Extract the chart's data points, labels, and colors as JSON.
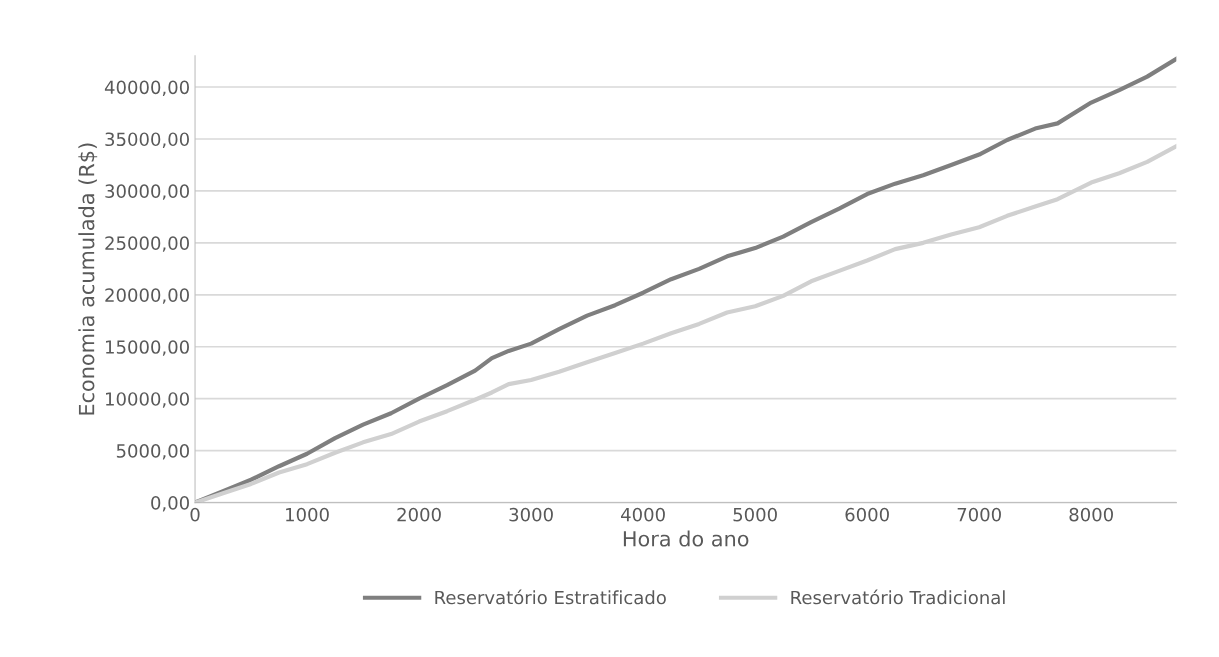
{
  "chart_data": {
    "type": "line",
    "xlabel": "Hora do ano",
    "ylabel": "Economia acumulada (R$)",
    "x": [
      0,
      250,
      500,
      750,
      1000,
      1250,
      1500,
      1750,
      2000,
      2250,
      2500,
      2650,
      2800,
      3000,
      3250,
      3500,
      3750,
      4000,
      4250,
      4500,
      4750,
      5000,
      5250,
      5500,
      5750,
      6000,
      6250,
      6500,
      6750,
      7000,
      7250,
      7500,
      7700,
      8000,
      8250,
      8500,
      8760
    ],
    "series": [
      {
        "name": "Reservatório Estratificado",
        "color": "#7f7f7f",
        "values": [
          0,
          1100,
          2200,
          3500,
          4700,
          6200,
          7500,
          8600,
          10000,
          11300,
          12700,
          13900,
          14600,
          15300,
          16700,
          18000,
          19000,
          20200,
          21500,
          22500,
          23700,
          24500,
          25600,
          27000,
          28300,
          29700,
          30700,
          31500,
          32500,
          33500,
          34900,
          36000,
          36500,
          38500,
          39700,
          41000,
          42700
        ]
      },
      {
        "name": "Reservatório Tradicional",
        "color": "#d0d0d0",
        "values": [
          0,
          900,
          1800,
          2900,
          3700,
          4800,
          5800,
          6600,
          7800,
          8800,
          9900,
          10600,
          11400,
          11800,
          12600,
          13500,
          14400,
          15300,
          16300,
          17200,
          18300,
          18900,
          19900,
          21300,
          22300,
          23300,
          24400,
          25000,
          25800,
          26500,
          27600,
          28500,
          29200,
          30800,
          31700,
          32800,
          34300
        ]
      }
    ],
    "xlim": [
      0,
      8760
    ],
    "xticks": [
      0,
      1000,
      2000,
      3000,
      4000,
      5000,
      6000,
      7000,
      8000
    ],
    "ylim": [
      0,
      43000
    ],
    "yticks": [
      {
        "value": 0,
        "label": "0,00"
      },
      {
        "value": 5000,
        "label": "5000,00"
      },
      {
        "value": 10000,
        "label": "10000,00"
      },
      {
        "value": 15000,
        "label": "15000,00"
      },
      {
        "value": 20000,
        "label": "20000,00"
      },
      {
        "value": 25000,
        "label": "25000,00"
      },
      {
        "value": 30000,
        "label": "30000,00"
      },
      {
        "value": 35000,
        "label": "35000,00"
      },
      {
        "value": 40000,
        "label": "40000,00"
      }
    ],
    "grid": "y",
    "legend": "bottom",
    "marker": "none",
    "line_style": "solid"
  }
}
